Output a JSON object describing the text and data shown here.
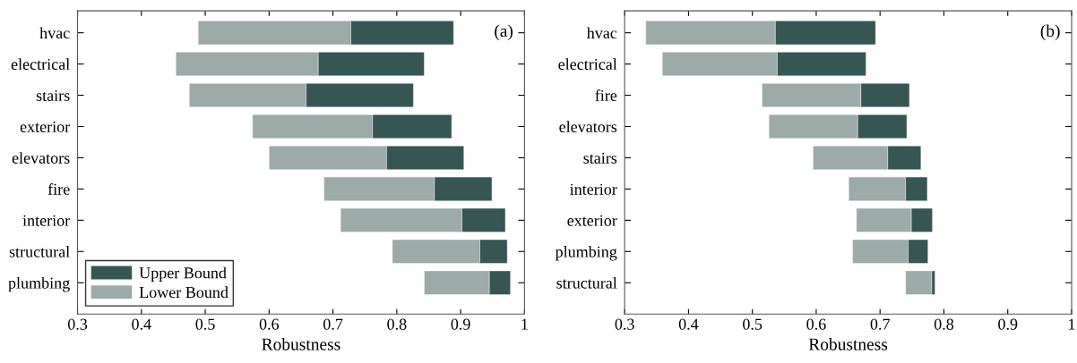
{
  "chart_data": [
    {
      "type": "bar",
      "orientation": "horizontal",
      "xlabel": "Robustness",
      "annotations": [
        "(a)"
      ],
      "legend": "bottom left",
      "categories": [
        "hvac",
        "electrical",
        "stairs",
        "exterior",
        "elevators",
        "fire",
        "interior",
        "structural",
        "plumbing"
      ],
      "series": [
        {
          "name": "Lower Bound",
          "color": "#9caaa8",
          "base": [
            0.489,
            0.454,
            0.475,
            0.574,
            0.6,
            0.686,
            0.712,
            0.793,
            0.843
          ],
          "values": [
            0.239,
            0.223,
            0.183,
            0.188,
            0.184,
            0.173,
            0.19,
            0.137,
            0.102
          ]
        },
        {
          "name": "Upper Bound",
          "color": "#365654",
          "base": [
            0.728,
            0.677,
            0.658,
            0.762,
            0.784,
            0.859,
            0.902,
            0.93,
            0.945
          ],
          "values": [
            0.161,
            0.166,
            0.168,
            0.124,
            0.121,
            0.09,
            0.068,
            0.043,
            0.033
          ]
        }
      ],
      "xlim": [
        0.3,
        1
      ],
      "xticks": [
        0.3,
        0.4,
        0.5,
        0.6,
        0.7,
        0.8,
        0.9,
        1
      ],
      "grid": false
    },
    {
      "type": "bar",
      "orientation": "horizontal",
      "xlabel": "Robustness",
      "annotations": [
        "(b)"
      ],
      "categories": [
        "hvac",
        "electrical",
        "fire",
        "elevators",
        "stairs",
        "interior",
        "exterior",
        "plumbing",
        "structural"
      ],
      "series": [
        {
          "color": "#9caaa8",
          "base": [
            0.333,
            0.359,
            0.515,
            0.526,
            0.595,
            0.651,
            0.663,
            0.657,
            0.74
          ],
          "values": [
            0.203,
            0.18,
            0.155,
            0.139,
            0.117,
            0.089,
            0.086,
            0.087,
            0.041
          ]
        },
        {
          "color": "#365654",
          "base": [
            0.536,
            0.539,
            0.67,
            0.665,
            0.712,
            0.74,
            0.749,
            0.744,
            0.781
          ],
          "values": [
            0.157,
            0.139,
            0.076,
            0.077,
            0.052,
            0.034,
            0.033,
            0.031,
            0.005
          ]
        }
      ],
      "xlim": [
        0.3,
        1
      ],
      "xticks": [
        0.3,
        0.4,
        0.5,
        0.6,
        0.7,
        0.8,
        0.9,
        1
      ],
      "grid": false
    }
  ]
}
